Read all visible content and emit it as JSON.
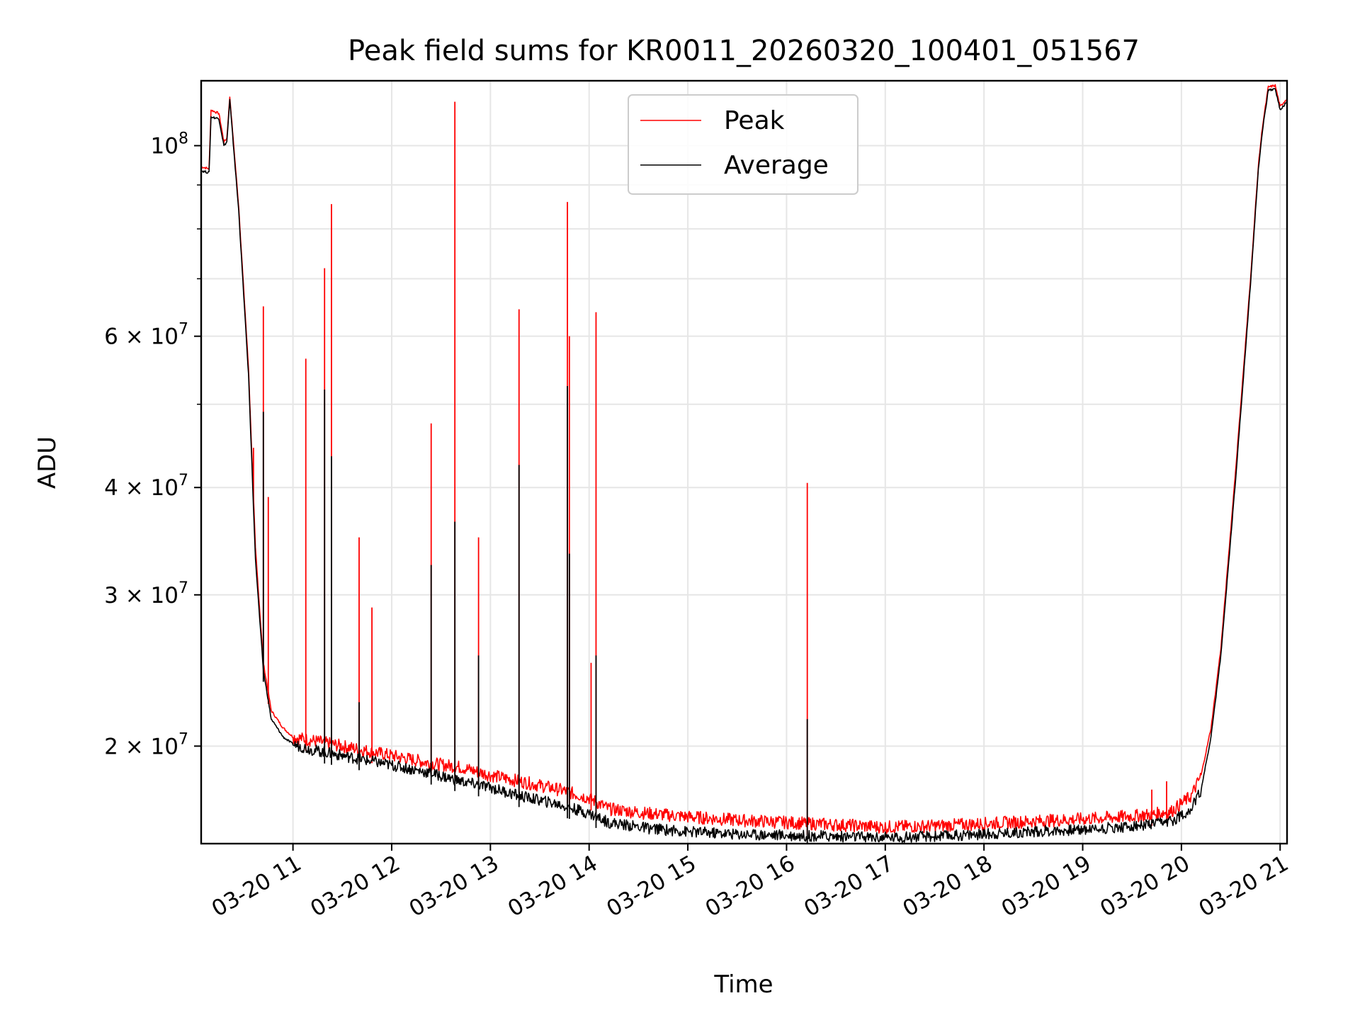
{
  "chart_data": {
    "type": "line",
    "title": "Peak field sums for KR0011_20260320_100401_051567",
    "xlabel": "Time",
    "ylabel": "ADU",
    "yscale": "log",
    "ylim": [
      15400000,
      119000000
    ],
    "xlim_hours": [
      10.07,
      21.07
    ],
    "grid": true,
    "legend_position": "top-center",
    "x_tick_labels": [
      "03-20 11",
      "03-20 12",
      "03-20 13",
      "03-20 14",
      "03-20 15",
      "03-20 16",
      "03-20 17",
      "03-20 18",
      "03-20 19",
      "03-20 20",
      "03-20 21"
    ],
    "x_tick_hours": [
      11,
      12,
      13,
      14,
      15,
      16,
      17,
      18,
      19,
      20,
      21
    ],
    "y_major_ticks": [
      {
        "value": 20000000,
        "mantissa": "2",
        "exp": "7"
      },
      {
        "value": 30000000,
        "mantissa": "3",
        "exp": "7"
      },
      {
        "value": 40000000,
        "mantissa": "4",
        "exp": "7"
      },
      {
        "value": 60000000,
        "mantissa": "6",
        "exp": "7"
      },
      {
        "value": 100000000,
        "mantissa": "",
        "exp": "8"
      }
    ],
    "y_minor_ticks": [
      50000000,
      70000000,
      80000000,
      90000000
    ],
    "series": [
      {
        "name": "Peak",
        "color": "#ff0000",
        "x_hours": [
          10.07,
          10.15,
          10.17,
          10.25,
          10.3,
          10.33,
          10.36,
          10.45,
          10.55,
          10.62,
          10.7,
          10.78,
          10.9,
          11.0,
          11.2,
          11.5,
          11.8,
          12.1,
          12.4,
          12.7,
          13.0,
          13.3,
          13.7,
          14.0,
          14.2,
          14.6,
          15.0,
          15.5,
          16.0,
          16.5,
          17.0,
          17.5,
          18.0,
          18.5,
          19.0,
          19.4,
          19.7,
          19.9,
          20.1,
          20.2,
          20.3,
          20.4,
          20.55,
          20.7,
          20.78,
          20.82,
          20.88,
          20.95,
          21.0,
          21.07
        ],
        "values": [
          94500000,
          94000000,
          110000000,
          109000000,
          101000000,
          102000000,
          114000000,
          85000000,
          55000000,
          34000000,
          25000000,
          22000000,
          21000000,
          20500000,
          20300000,
          20000000,
          19700000,
          19400000,
          19100000,
          18900000,
          18500000,
          18200000,
          17800000,
          17400000,
          16900000,
          16700000,
          16550000,
          16400000,
          16300000,
          16200000,
          16100000,
          16150000,
          16250000,
          16350000,
          16450000,
          16550000,
          16650000,
          16800000,
          17500000,
          18500000,
          21000000,
          26000000,
          42000000,
          70000000,
          95000000,
          105000000,
          117000000,
          117500000,
          111000000,
          113500000
        ],
        "spikes": [
          [
            10.7,
            65000000
          ],
          [
            10.75,
            39000000
          ],
          [
            10.6,
            44500000
          ],
          [
            11.13,
            56500000
          ],
          [
            11.32,
            72000000
          ],
          [
            11.39,
            85500000
          ],
          [
            11.67,
            35000000
          ],
          [
            11.8,
            29000000
          ],
          [
            12.4,
            47500000
          ],
          [
            12.64,
            112500000
          ],
          [
            12.88,
            35000000
          ],
          [
            13.29,
            64500000
          ],
          [
            13.78,
            86000000
          ],
          [
            13.8,
            60000000
          ],
          [
            14.07,
            64000000
          ],
          [
            14.02,
            25000000
          ],
          [
            16.21,
            40500000
          ],
          [
            19.7,
            17800000
          ],
          [
            19.85,
            18200000
          ]
        ]
      },
      {
        "name": "Average",
        "color": "#000000",
        "x_hours": [
          10.07,
          10.15,
          10.17,
          10.25,
          10.3,
          10.33,
          10.36,
          10.45,
          10.55,
          10.62,
          10.7,
          10.78,
          10.9,
          11.0,
          11.2,
          11.5,
          11.8,
          12.1,
          12.4,
          12.7,
          13.0,
          13.3,
          13.7,
          14.0,
          14.2,
          14.6,
          15.0,
          15.5,
          16.0,
          16.5,
          17.0,
          17.5,
          18.0,
          18.5,
          19.0,
          19.4,
          19.7,
          19.9,
          20.1,
          20.2,
          20.3,
          20.4,
          20.55,
          20.7,
          20.78,
          20.82,
          20.88,
          20.95,
          21.0,
          21.07
        ],
        "values": [
          93500000,
          93000000,
          108000000,
          107500000,
          100000000,
          101000000,
          113000000,
          84000000,
          54000000,
          33000000,
          24500000,
          21500000,
          20500000,
          20100000,
          19800000,
          19500000,
          19200000,
          18900000,
          18600000,
          18200000,
          17900000,
          17500000,
          17100000,
          16700000,
          16300000,
          16050000,
          15900000,
          15800000,
          15750000,
          15700000,
          15650000,
          15700000,
          15800000,
          15900000,
          16000000,
          16100000,
          16200000,
          16350000,
          16900000,
          17800000,
          20500000,
          25500000,
          41000000,
          69000000,
          94000000,
          104000000,
          116000000,
          116500000,
          110000000,
          112500000
        ],
        "spikes": [
          [
            10.7,
            49000000
          ],
          [
            11.32,
            52000000
          ],
          [
            11.39,
            43500000
          ],
          [
            11.67,
            22500000
          ],
          [
            12.4,
            32500000
          ],
          [
            12.64,
            36500000
          ],
          [
            12.88,
            25500000
          ],
          [
            13.29,
            42500000
          ],
          [
            13.78,
            52500000
          ],
          [
            13.8,
            33500000
          ],
          [
            14.07,
            25500000
          ],
          [
            16.21,
            21500000
          ]
        ]
      }
    ]
  }
}
